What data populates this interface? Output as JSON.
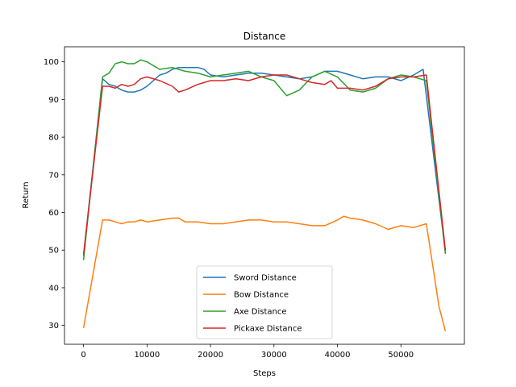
{
  "chart_data": {
    "type": "line",
    "title": "Distance",
    "xlabel": "Steps",
    "ylabel": "Return",
    "xlim": [
      -3000,
      60000
    ],
    "ylim": [
      25,
      104
    ],
    "xticks": [
      0,
      10000,
      20000,
      30000,
      40000,
      50000
    ],
    "yticks": [
      30,
      40,
      50,
      60,
      70,
      80,
      90,
      100
    ],
    "grid": false,
    "legend_position": "lower-center",
    "series": [
      {
        "name": "Sword Distance",
        "color": "#1f77b4",
        "x": [
          0,
          3000,
          4000,
          5000,
          6000,
          7000,
          8000,
          9000,
          10000,
          11000,
          12000,
          13000,
          14000,
          15000,
          16000,
          17000,
          18000,
          19000,
          20000,
          22000,
          24000,
          26000,
          28000,
          30000,
          32000,
          34000,
          36000,
          38000,
          40000,
          42000,
          44000,
          46000,
          48000,
          50000,
          52000,
          53500,
          57000
        ],
        "y": [
          48.5,
          95.5,
          94.0,
          93.5,
          92.5,
          92.0,
          92.0,
          92.5,
          93.5,
          95.0,
          96.5,
          97.0,
          98.0,
          98.5,
          98.5,
          98.5,
          98.5,
          98.0,
          96.5,
          96.0,
          96.5,
          97.0,
          97.0,
          96.5,
          96.0,
          95.5,
          96.0,
          97.5,
          97.5,
          96.5,
          95.5,
          96.0,
          96.0,
          95.0,
          96.5,
          98.0,
          49.5
        ]
      },
      {
        "name": "Bow Distance",
        "color": "#ff7f0e",
        "x": [
          0,
          3000,
          4000,
          5000,
          6000,
          7000,
          8000,
          9000,
          10000,
          12000,
          14000,
          15000,
          16000,
          18000,
          20000,
          22000,
          24000,
          26000,
          28000,
          30000,
          32000,
          34000,
          36000,
          38000,
          40000,
          41000,
          42000,
          44000,
          46000,
          48000,
          50000,
          52000,
          54000,
          56000,
          57000
        ],
        "y": [
          29.3,
          58.0,
          58.0,
          57.5,
          57.0,
          57.5,
          57.5,
          58.0,
          57.5,
          58.0,
          58.5,
          58.5,
          57.5,
          57.5,
          57.0,
          57.0,
          57.5,
          58.0,
          58.0,
          57.5,
          57.5,
          57.0,
          56.5,
          56.5,
          58.0,
          59.0,
          58.5,
          58.0,
          57.0,
          55.5,
          56.5,
          56.0,
          57.0,
          35.0,
          28.5
        ]
      },
      {
        "name": "Axe Distance",
        "color": "#2ca02c",
        "x": [
          0,
          3000,
          4000,
          5000,
          6000,
          7000,
          8000,
          9000,
          10000,
          11000,
          12000,
          14000,
          16000,
          18000,
          20000,
          22000,
          24000,
          26000,
          28000,
          30000,
          31000,
          32000,
          34000,
          36000,
          38000,
          40000,
          42000,
          44000,
          46000,
          48000,
          50000,
          52000,
          54000,
          57000
        ],
        "y": [
          47.3,
          96.0,
          97.0,
          99.5,
          100.0,
          99.5,
          99.5,
          100.5,
          100.0,
          99.0,
          98.0,
          98.5,
          97.5,
          97.0,
          96.0,
          96.5,
          97.0,
          97.5,
          96.0,
          95.0,
          93.0,
          91.0,
          92.5,
          96.0,
          97.5,
          96.0,
          92.5,
          92.0,
          93.0,
          95.5,
          96.5,
          96.0,
          95.0,
          49.0
        ]
      },
      {
        "name": "Pickaxe Distance",
        "color": "#d62728",
        "x": [
          0,
          3000,
          4000,
          5000,
          6000,
          7000,
          8000,
          9000,
          10000,
          12000,
          14000,
          15000,
          16000,
          18000,
          20000,
          22000,
          24000,
          26000,
          28000,
          30000,
          32000,
          34000,
          36000,
          38000,
          39000,
          40000,
          42000,
          44000,
          46000,
          48000,
          50000,
          52000,
          54000,
          57000
        ],
        "y": [
          48.8,
          93.5,
          93.5,
          93.0,
          94.0,
          93.5,
          94.0,
          95.5,
          96.0,
          95.0,
          93.5,
          92.0,
          92.5,
          94.0,
          95.0,
          95.0,
          95.5,
          95.0,
          96.0,
          96.5,
          96.5,
          95.5,
          94.5,
          94.0,
          95.0,
          93.0,
          93.0,
          92.5,
          93.5,
          95.5,
          96.0,
          96.0,
          96.5,
          50.0
        ]
      }
    ]
  }
}
